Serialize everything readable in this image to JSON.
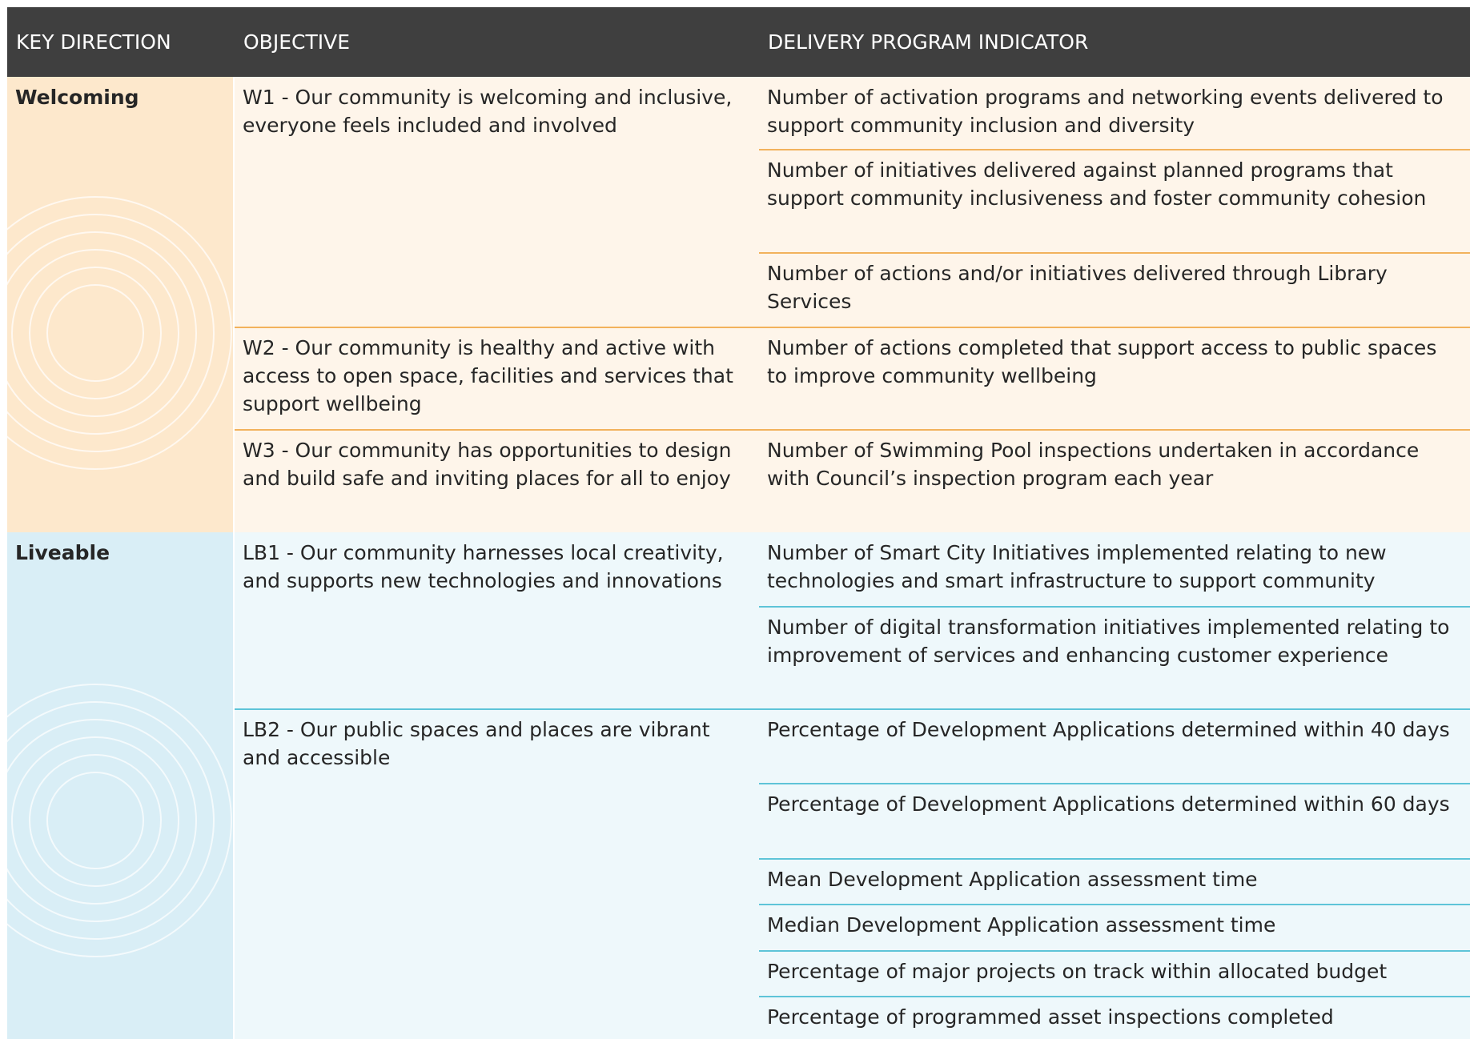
{
  "header": {
    "columns": [
      "KEY DIRECTION",
      "OBJECTIVE",
      "DELIVERY PROGRAM INDICATOR"
    ]
  },
  "directions": [
    {
      "name": "Welcoming",
      "objectives": [
        {
          "text": "W1 - Our community is welcoming and inclusive, everyone feels included and involved",
          "indicators": [
            "Number of activation programs and networking events delivered to support community inclusion and diversity",
            "Number of initiatives delivered against planned programs that support community inclusiveness and foster community cohesion",
            "Number of actions and/or initiatives delivered through Library Services"
          ]
        },
        {
          "text": "W2 - Our community is healthy and active with access to open space, facilities and services that support wellbeing",
          "indicators": [
            "Number of actions completed that support access to public spaces to improve community wellbeing"
          ]
        },
        {
          "text": "W3 - Our community has opportunities to design and build safe and inviting places for all to enjoy",
          "indicators": [
            "Number of Swimming Pool inspections undertaken in accordance with Council’s inspection program each year"
          ]
        }
      ]
    },
    {
      "name": "Liveable",
      "objectives": [
        {
          "text": "LB1 - Our community harnesses local creativity, and supports new technologies and innovations",
          "indicators": [
            "Number of Smart City Initiatives implemented relating to new technologies and smart infrastructure to support community",
            "Number of digital transformation initiatives implemented relating to improvement of services and enhancing customer experience"
          ]
        },
        {
          "text": "LB2 - Our public spaces and places are vibrant and accessible",
          "indicators": [
            "Percentage of Development Applications determined within 40 days",
            "Percentage of Development Applications determined within 60 days",
            "Mean Development Application  assessment time",
            "Median Development Application assessment time",
            "Percentage of major projects on track within allocated budget",
            "Percentage of programmed asset inspections completed"
          ]
        }
      ]
    }
  ]
}
